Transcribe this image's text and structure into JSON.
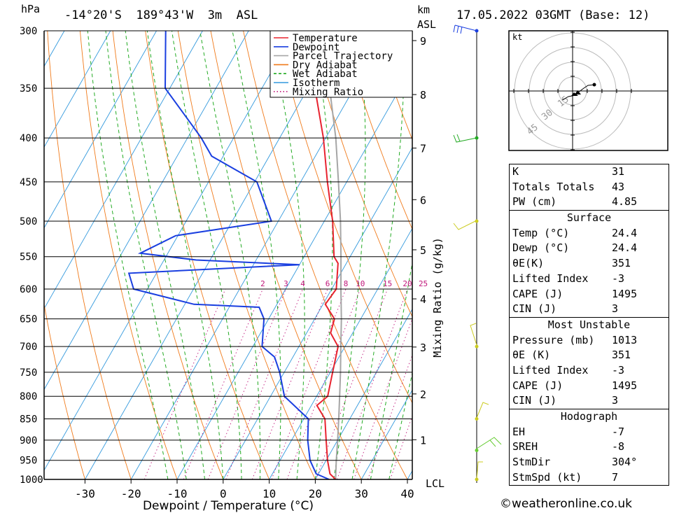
{
  "header": {
    "pressure_unit": "hPa",
    "location": "-14°20'S  189°43'W  3m  ASL",
    "height_unit": "km",
    "height_ref": "ASL",
    "datetime": "17.05.2022 03GMT (Base: 12)"
  },
  "chart_data": {
    "type": "skew-t",
    "xlabel": "Dewpoint / Temperature (°C)",
    "ylabel_right": "Mixing Ratio (g/kg)",
    "pressure_levels": [
      300,
      350,
      400,
      450,
      500,
      550,
      600,
      650,
      700,
      750,
      800,
      850,
      900,
      950,
      1000
    ],
    "temperature_ticks": [
      -30,
      -20,
      -10,
      0,
      10,
      20,
      30,
      40
    ],
    "height_ticks": [
      {
        "km": "1",
        "p": 899
      },
      {
        "km": "2",
        "p": 795
      },
      {
        "km": "3",
        "p": 701
      },
      {
        "km": "4",
        "p": 616
      },
      {
        "km": "5",
        "p": 540
      },
      {
        "km": "6",
        "p": 472
      },
      {
        "km": "7",
        "p": 411
      },
      {
        "km": "8",
        "p": 356
      },
      {
        "km": "9",
        "p": 308
      }
    ],
    "lcl_label": "LCL",
    "mixing_ratio_labels": [
      "2",
      "3",
      "4",
      "6",
      "8",
      "10",
      "15",
      "20",
      "25"
    ],
    "legend": [
      "Temperature",
      "Dewpoint",
      "Parcel Trajectory",
      "Dry Adiabat",
      "Wet Adiabat",
      "Isotherm",
      "Mixing Ratio"
    ],
    "colors": {
      "temperature": "#e8232f",
      "dewpoint": "#1a3fe0",
      "parcel": "#a6a6a6",
      "dry_adiabat": "#f07a1a",
      "wet_adiabat": "#22aa22",
      "isotherm": "#3399dd",
      "mixing_ratio": "#c0167a"
    },
    "temperature_profile": [
      {
        "p": 1000,
        "t": 24.4
      },
      {
        "p": 985,
        "t": 22.5
      },
      {
        "p": 950,
        "t": 20.3
      },
      {
        "p": 900,
        "t": 17.5
      },
      {
        "p": 850,
        "t": 14.6
      },
      {
        "p": 820,
        "t": 11.2
      },
      {
        "p": 800,
        "t": 12.4
      },
      {
        "p": 750,
        "t": 10.5
      },
      {
        "p": 700,
        "t": 8.5
      },
      {
        "p": 675,
        "t": 5.2
      },
      {
        "p": 650,
        "t": 4.3
      },
      {
        "p": 625,
        "t": 0.5
      },
      {
        "p": 600,
        "t": 1.0
      },
      {
        "p": 560,
        "t": -1.8
      },
      {
        "p": 550,
        "t": -3.5
      },
      {
        "p": 500,
        "t": -8.2
      },
      {
        "p": 450,
        "t": -14.2
      },
      {
        "p": 400,
        "t": -20.5
      },
      {
        "p": 350,
        "t": -28.5
      },
      {
        "p": 300,
        "t": -39.5
      }
    ],
    "dewpoint_profile": [
      {
        "p": 1000,
        "t": 23.0
      },
      {
        "p": 985,
        "t": 19.5
      },
      {
        "p": 950,
        "t": 16.5
      },
      {
        "p": 900,
        "t": 13.5
      },
      {
        "p": 850,
        "t": 11.0
      },
      {
        "p": 800,
        "t": 3.0
      },
      {
        "p": 750,
        "t": -1.0
      },
      {
        "p": 720,
        "t": -4.0
      },
      {
        "p": 700,
        "t": -8.0
      },
      {
        "p": 650,
        "t": -11.0
      },
      {
        "p": 630,
        "t": -13.5
      },
      {
        "p": 625,
        "t": -28.0
      },
      {
        "p": 600,
        "t": -43.0
      },
      {
        "p": 575,
        "t": -46.0
      },
      {
        "p": 562,
        "t": -10.0
      },
      {
        "p": 555,
        "t": -33.0
      },
      {
        "p": 545,
        "t": -46.0
      },
      {
        "p": 520,
        "t": -40.5
      },
      {
        "p": 500,
        "t": -21.5
      },
      {
        "p": 450,
        "t": -29.5
      },
      {
        "p": 420,
        "t": -42.5
      },
      {
        "p": 400,
        "t": -47.0
      },
      {
        "p": 385,
        "t": -51.0
      },
      {
        "p": 350,
        "t": -61.0
      },
      {
        "p": 300,
        "t": -68.0
      }
    ],
    "parcel_trajectory": [
      {
        "p": 1000,
        "t": 24.4
      },
      {
        "p": 950,
        "t": 22.2
      },
      {
        "p": 900,
        "t": 20.0
      },
      {
        "p": 850,
        "t": 17.6
      },
      {
        "p": 800,
        "t": 15.0
      },
      {
        "p": 750,
        "t": 12.2
      },
      {
        "p": 700,
        "t": 9.1
      },
      {
        "p": 650,
        "t": 5.8
      },
      {
        "p": 600,
        "t": 2.0
      },
      {
        "p": 550,
        "t": -2.0
      },
      {
        "p": 500,
        "t": -6.5
      },
      {
        "p": 450,
        "t": -11.8
      },
      {
        "p": 400,
        "t": -17.8
      },
      {
        "p": 350,
        "t": -25.3
      }
    ],
    "wind_barb_levels": [
      300,
      400,
      500,
      700,
      850,
      925,
      1000
    ]
  },
  "hodograph": {
    "unit": "kt",
    "rings": [
      "15",
      "30",
      "45"
    ]
  },
  "indices": {
    "block1": [
      {
        "label": "K",
        "value": "31"
      },
      {
        "label": "Totals Totals",
        "value": "43"
      },
      {
        "label": "PW (cm)",
        "value": "4.85"
      }
    ],
    "surface_title": "Surface",
    "surface": [
      {
        "label": "Temp (°C)",
        "value": "24.4"
      },
      {
        "label": "Dewp (°C)",
        "value": "24.4"
      },
      {
        "label": "θE(K)",
        "value": "351"
      },
      {
        "label": "Lifted Index",
        "value": "-3"
      },
      {
        "label": "CAPE (J)",
        "value": "1495"
      },
      {
        "label": "CIN (J)",
        "value": "3"
      }
    ],
    "most_unstable_title": "Most Unstable",
    "most_unstable": [
      {
        "label": "Pressure (mb)",
        "value": "1013"
      },
      {
        "label": "θE (K)",
        "value": "351"
      },
      {
        "label": "Lifted Index",
        "value": "-3"
      },
      {
        "label": "CAPE (J)",
        "value": "1495"
      },
      {
        "label": "CIN (J)",
        "value": "3"
      }
    ],
    "hodograph_title": "Hodograph",
    "hodograph_block": [
      {
        "label": "EH",
        "value": "-7"
      },
      {
        "label": "SREH",
        "value": "-8"
      },
      {
        "label": "StmDir",
        "value": "304°"
      },
      {
        "label": "StmSpd (kt)",
        "value": "7"
      }
    ]
  },
  "footer": "©weatheronline.co.uk"
}
